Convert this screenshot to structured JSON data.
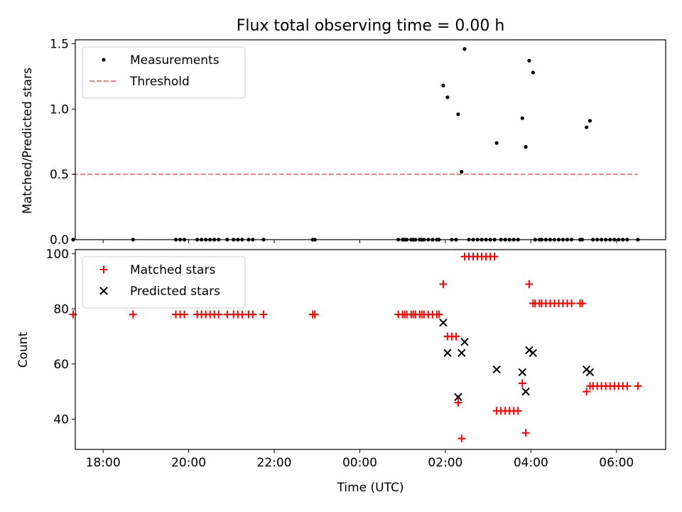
{
  "figure": {
    "title": "Flux total observing time = 0.00 h",
    "xlabel": "Time (UTC)",
    "xticks": [
      {
        "v": -6,
        "label": "18:00"
      },
      {
        "v": -4,
        "label": "20:00"
      },
      {
        "v": -2,
        "label": "22:00"
      },
      {
        "v": 0,
        "label": "00:00"
      },
      {
        "v": 2,
        "label": "02:00"
      },
      {
        "v": 4,
        "label": "04:00"
      },
      {
        "v": 6,
        "label": "06:00"
      }
    ],
    "xlim": [
      -6.65,
      7.15
    ]
  },
  "chart_data": [
    {
      "type": "scatter",
      "ylabel": "Matched/Predicted stars",
      "ylim": [
        0,
        1.53
      ],
      "yticks": [
        {
          "v": 0,
          "label": "0.0"
        },
        {
          "v": 0.5,
          "label": "0.5"
        },
        {
          "v": 1.0,
          "label": "1.0"
        },
        {
          "v": 1.5,
          "label": "1.5"
        }
      ],
      "legend": {
        "placement": "top-left",
        "entries": [
          "Measurements",
          "Threshold"
        ]
      },
      "threshold": {
        "name": "Threshold",
        "y": 0.5,
        "x": [
          -6.7,
          6.5
        ],
        "color": "#ff8080"
      },
      "series": [
        {
          "name": "Measurements",
          "marker": "dot",
          "color": "#000000",
          "points": [
            [
              -6.7,
              0
            ],
            [
              -5.3,
              0
            ],
            [
              -4.3,
              0
            ],
            [
              -4.2,
              0
            ],
            [
              -4.1,
              0
            ],
            [
              -3.8,
              0
            ],
            [
              -3.7,
              0
            ],
            [
              -3.6,
              0
            ],
            [
              -3.5,
              0
            ],
            [
              -3.4,
              0
            ],
            [
              -3.3,
              0
            ],
            [
              -3.1,
              0
            ],
            [
              -2.95,
              0
            ],
            [
              -2.85,
              0
            ],
            [
              -2.75,
              0
            ],
            [
              -2.6,
              0
            ],
            [
              -2.5,
              0
            ],
            [
              -2.25,
              0
            ],
            [
              -1.1,
              0
            ],
            [
              -1.05,
              0
            ],
            [
              0.9,
              0
            ],
            [
              1.0,
              0
            ],
            [
              1.05,
              0
            ],
            [
              1.1,
              0
            ],
            [
              1.2,
              0
            ],
            [
              1.25,
              0
            ],
            [
              1.3,
              0
            ],
            [
              1.4,
              0
            ],
            [
              1.45,
              0
            ],
            [
              1.5,
              0
            ],
            [
              1.6,
              0
            ],
            [
              1.7,
              0
            ],
            [
              1.8,
              0
            ],
            [
              1.85,
              0
            ],
            [
              1.95,
              1.18
            ],
            [
              2.05,
              1.09
            ],
            [
              2.15,
              0
            ],
            [
              2.25,
              0
            ],
            [
              2.3,
              0.96
            ],
            [
              2.38,
              0.52
            ],
            [
              2.45,
              1.46
            ],
            [
              2.55,
              0
            ],
            [
              2.65,
              0
            ],
            [
              2.75,
              0
            ],
            [
              2.85,
              0
            ],
            [
              2.95,
              0
            ],
            [
              3.05,
              0
            ],
            [
              3.15,
              0
            ],
            [
              3.2,
              0.74
            ],
            [
              3.3,
              0
            ],
            [
              3.4,
              0
            ],
            [
              3.5,
              0
            ],
            [
              3.6,
              0
            ],
            [
              3.7,
              0
            ],
            [
              3.8,
              0.93
            ],
            [
              3.88,
              0.71
            ],
            [
              3.96,
              1.37
            ],
            [
              4.05,
              1.28
            ],
            [
              4.1,
              0
            ],
            [
              4.2,
              0
            ],
            [
              4.25,
              0
            ],
            [
              4.35,
              0
            ],
            [
              4.45,
              0
            ],
            [
              4.55,
              0
            ],
            [
              4.65,
              0
            ],
            [
              4.75,
              0
            ],
            [
              4.85,
              0
            ],
            [
              4.95,
              0
            ],
            [
              5.15,
              0
            ],
            [
              5.2,
              0
            ],
            [
              5.3,
              0.86
            ],
            [
              5.38,
              0.91
            ],
            [
              5.45,
              0
            ],
            [
              5.55,
              0
            ],
            [
              5.65,
              0
            ],
            [
              5.75,
              0
            ],
            [
              5.85,
              0
            ],
            [
              5.95,
              0
            ],
            [
              6.05,
              0
            ],
            [
              6.15,
              0
            ],
            [
              6.25,
              0
            ],
            [
              6.5,
              0
            ]
          ]
        }
      ]
    },
    {
      "type": "scatter",
      "ylabel": "Count",
      "ylim": [
        29,
        101.5
      ],
      "yticks": [
        {
          "v": 40,
          "label": "40"
        },
        {
          "v": 60,
          "label": "60"
        },
        {
          "v": 80,
          "label": "80"
        },
        {
          "v": 100,
          "label": "100"
        }
      ],
      "legend": {
        "placement": "top-left",
        "entries": [
          "Matched stars",
          "Predicted stars"
        ]
      },
      "series": [
        {
          "name": "Matched stars",
          "marker": "plus",
          "color": "#ff0000",
          "points": [
            [
              -6.7,
              78
            ],
            [
              -5.3,
              78
            ],
            [
              -4.3,
              78
            ],
            [
              -4.2,
              78
            ],
            [
              -4.1,
              78
            ],
            [
              -3.8,
              78
            ],
            [
              -3.7,
              78
            ],
            [
              -3.6,
              78
            ],
            [
              -3.5,
              78
            ],
            [
              -3.4,
              78
            ],
            [
              -3.3,
              78
            ],
            [
              -3.1,
              78
            ],
            [
              -2.95,
              78
            ],
            [
              -2.85,
              78
            ],
            [
              -2.75,
              78
            ],
            [
              -2.6,
              78
            ],
            [
              -2.5,
              78
            ],
            [
              -2.25,
              78
            ],
            [
              -1.1,
              78
            ],
            [
              -1.05,
              78
            ],
            [
              0.9,
              78
            ],
            [
              1.0,
              78
            ],
            [
              1.05,
              78
            ],
            [
              1.1,
              78
            ],
            [
              1.2,
              78
            ],
            [
              1.25,
              78
            ],
            [
              1.3,
              78
            ],
            [
              1.4,
              78
            ],
            [
              1.45,
              78
            ],
            [
              1.5,
              78
            ],
            [
              1.6,
              78
            ],
            [
              1.7,
              78
            ],
            [
              1.8,
              78
            ],
            [
              1.85,
              78
            ],
            [
              1.95,
              89
            ],
            [
              2.05,
              70
            ],
            [
              2.15,
              70
            ],
            [
              2.25,
              70
            ],
            [
              2.3,
              46
            ],
            [
              2.38,
              33
            ],
            [
              2.45,
              99
            ],
            [
              2.55,
              99
            ],
            [
              2.65,
              99
            ],
            [
              2.75,
              99
            ],
            [
              2.85,
              99
            ],
            [
              2.95,
              99
            ],
            [
              3.05,
              99
            ],
            [
              3.15,
              99
            ],
            [
              3.2,
              43
            ],
            [
              3.3,
              43
            ],
            [
              3.4,
              43
            ],
            [
              3.5,
              43
            ],
            [
              3.6,
              43
            ],
            [
              3.7,
              43
            ],
            [
              3.8,
              53
            ],
            [
              3.88,
              35
            ],
            [
              3.96,
              89
            ],
            [
              4.05,
              82
            ],
            [
              4.1,
              82
            ],
            [
              4.2,
              82
            ],
            [
              4.25,
              82
            ],
            [
              4.35,
              82
            ],
            [
              4.45,
              82
            ],
            [
              4.55,
              82
            ],
            [
              4.65,
              82
            ],
            [
              4.75,
              82
            ],
            [
              4.85,
              82
            ],
            [
              4.95,
              82
            ],
            [
              5.15,
              82
            ],
            [
              5.2,
              82
            ],
            [
              5.3,
              50
            ],
            [
              5.38,
              52
            ],
            [
              5.45,
              52
            ],
            [
              5.55,
              52
            ],
            [
              5.65,
              52
            ],
            [
              5.75,
              52
            ],
            [
              5.85,
              52
            ],
            [
              5.95,
              52
            ],
            [
              6.05,
              52
            ],
            [
              6.15,
              52
            ],
            [
              6.25,
              52
            ],
            [
              6.5,
              52
            ]
          ]
        },
        {
          "name": "Predicted stars",
          "marker": "x",
          "color": "#000000",
          "points": [
            [
              1.95,
              75
            ],
            [
              2.05,
              64
            ],
            [
              2.3,
              48
            ],
            [
              2.38,
              64
            ],
            [
              2.45,
              68
            ],
            [
              3.2,
              58
            ],
            [
              3.8,
              57
            ],
            [
              3.88,
              50
            ],
            [
              3.96,
              65
            ],
            [
              4.05,
              64
            ],
            [
              5.3,
              58
            ],
            [
              5.38,
              57
            ]
          ]
        }
      ]
    }
  ]
}
